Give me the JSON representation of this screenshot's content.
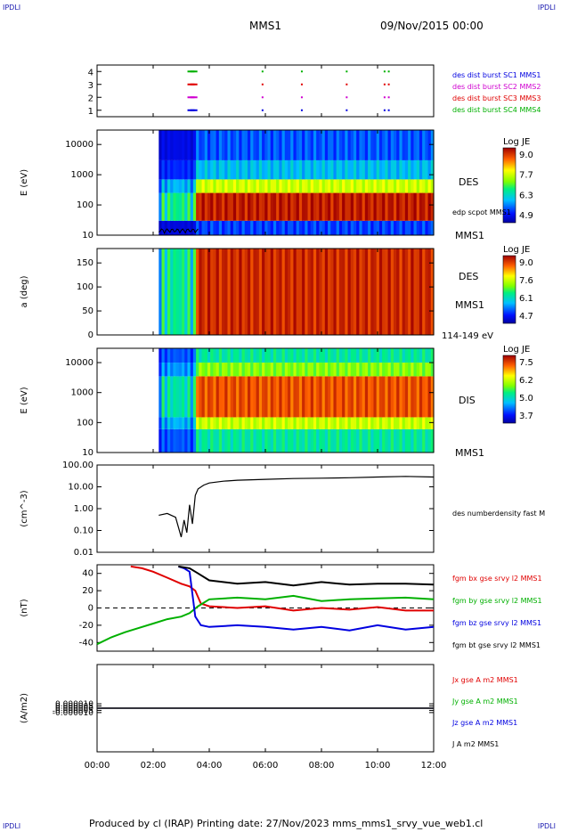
{
  "corner_labels": {
    "top_left": "IPDLI",
    "top_right": "IPDLI",
    "bottom_left": "IPDLI",
    "bottom_right": "IPDLI"
  },
  "header": {
    "spacecraft": "MMS1",
    "datetime": "09/Nov/2015 00:00"
  },
  "footer": "Produced by cl (IRAP)   Printing date: 27/Nov/2023   mms_mms1_srvy_vue_web1.cl",
  "colors": {
    "green": "#00b000",
    "magenta": "#d000d0",
    "red": "#e00000",
    "blue": "#0000e0",
    "black": "#000000"
  },
  "chart_data": [
    {
      "type": "scatter",
      "id": "burst",
      "ylim": [
        0.5,
        4.5
      ],
      "yticks": [
        "1",
        "2",
        "3",
        "4"
      ],
      "series": [
        {
          "name": "des dist burst SC1 MMS1",
          "color": "#0000e0",
          "level": 1,
          "x": [
            3.35,
            3.45,
            5.9,
            7.3,
            8.9,
            10.25,
            10.4
          ]
        },
        {
          "name": "des dist burst SC2 MMS2",
          "color": "#d000d0",
          "level": 2,
          "x": [
            3.35,
            3.45,
            5.9,
            7.3,
            8.9,
            10.25,
            10.4
          ]
        },
        {
          "name": "des dist burst SC3 MMS3",
          "color": "#e00000",
          "level": 3,
          "x": [
            3.35,
            3.45,
            5.9,
            7.3,
            8.9,
            10.25,
            10.4
          ]
        },
        {
          "name": "des dist burst SC4 MMS4",
          "color": "#00b000",
          "level": 4,
          "x": [
            3.35,
            3.45,
            5.9,
            7.3,
            8.9,
            10.25,
            10.4
          ]
        }
      ]
    },
    {
      "type": "heatmap",
      "id": "des_energy",
      "ylabel": "E (eV)",
      "yscale": "log",
      "ylim": [
        10,
        30000
      ],
      "yticks": [
        "10",
        "100",
        "1000",
        "10000"
      ],
      "instrument": "DES",
      "spacecraft": "MMS1",
      "overlay_label": "edp scpot MMS1",
      "colorbar": {
        "title": "Log JE",
        "ticks": [
          "9.0",
          "7.7",
          "6.3",
          "4.9"
        ],
        "min": 4.9,
        "max": 9.1
      },
      "data_start_hour": 2.2,
      "bands": [
        {
          "from": 10,
          "to": 30,
          "level": 5.6
        },
        {
          "from": 30,
          "to": 250,
          "level": 8.9
        },
        {
          "from": 250,
          "to": 700,
          "level": 7.6
        },
        {
          "from": 700,
          "to": 3000,
          "level": 6.2
        },
        {
          "from": 3000,
          "to": 30000,
          "level": 5.7
        }
      ]
    },
    {
      "type": "heatmap",
      "id": "des_pitch",
      "ylabel": "a (deg)",
      "ylim": [
        0,
        180
      ],
      "yticks": [
        "0",
        "50",
        "100",
        "150"
      ],
      "instrument": "DES",
      "spacecraft": "MMS1",
      "energy_range": "114-149 eV",
      "colorbar": {
        "title": "Log JE",
        "ticks": [
          "9.0",
          "7.6",
          "6.1",
          "4.7"
        ],
        "min": 4.7,
        "max": 9.1
      },
      "data_start_hour": 2.2,
      "bands": [
        {
          "from": 0,
          "to": 180,
          "level": 8.8
        }
      ]
    },
    {
      "type": "heatmap",
      "id": "dis_energy",
      "ylabel": "E (eV)",
      "yscale": "log",
      "ylim": [
        10,
        30000
      ],
      "yticks": [
        "10",
        "100",
        "1000",
        "10000"
      ],
      "instrument": "DIS",
      "spacecraft": "MMS1",
      "colorbar": {
        "title": "Log JE",
        "ticks": [
          "7.5",
          "6.2",
          "5.0",
          "3.7"
        ],
        "min": 3.7,
        "max": 7.8
      },
      "data_start_hour": 2.2,
      "bands": [
        {
          "from": 10,
          "to": 60,
          "level": 5.4
        },
        {
          "from": 60,
          "to": 150,
          "level": 6.3
        },
        {
          "from": 150,
          "to": 3500,
          "level": 7.3
        },
        {
          "from": 3500,
          "to": 10000,
          "level": 6.0
        },
        {
          "from": 10000,
          "to": 30000,
          "level": 5.4
        }
      ]
    },
    {
      "type": "line",
      "id": "density",
      "ylabel": "(cm^-3)",
      "yscale": "log",
      "ylim": [
        0.01,
        100
      ],
      "yticks": [
        "0.01",
        "0.10",
        "1.00",
        "10.00",
        "100.00"
      ],
      "series": [
        {
          "name": "des numberdensity fast M",
          "color": "#000000",
          "x": [
            2.2,
            2.5,
            2.8,
            3.0,
            3.1,
            3.2,
            3.3,
            3.4,
            3.5,
            3.6,
            3.8,
            4.0,
            4.5,
            5.0,
            6.0,
            7.0,
            8.0,
            9.0,
            10.0,
            11.0,
            12.0
          ],
          "y": [
            0.5,
            0.6,
            0.4,
            0.05,
            0.3,
            0.08,
            1.5,
            0.2,
            4,
            8,
            12,
            15,
            18,
            20,
            22,
            24,
            25,
            26,
            28,
            30,
            28
          ]
        }
      ]
    },
    {
      "type": "line",
      "id": "bfield",
      "ylabel": "(nT)",
      "ylim": [
        -50,
        50
      ],
      "yticks": [
        "-40",
        "-20",
        "0",
        "20",
        "40"
      ],
      "series": [
        {
          "name": "fgm bx gse srvy l2 MMS1",
          "color": "#e00000",
          "x": [
            1.2,
            1.6,
            2.0,
            2.5,
            3.0,
            3.3,
            3.5,
            3.7,
            4.0,
            5.0,
            6.0,
            7.0,
            8.0,
            9.0,
            10.0,
            11.0,
            12.0
          ],
          "y": [
            48,
            46,
            42,
            35,
            28,
            25,
            20,
            5,
            2,
            0,
            2,
            -3,
            0,
            -2,
            1,
            -3,
            -3
          ]
        },
        {
          "name": "fgm by gse srvy l2 MMS1",
          "color": "#00b000",
          "x": [
            0.0,
            0.5,
            1.0,
            1.5,
            2.0,
            2.5,
            3.0,
            3.3,
            3.6,
            4.0,
            5.0,
            6.0,
            7.0,
            8.0,
            9.0,
            10.0,
            11.0,
            12.0
          ],
          "y": [
            -42,
            -34,
            -28,
            -23,
            -18,
            -13,
            -10,
            -6,
            2,
            10,
            12,
            10,
            14,
            8,
            10,
            11,
            12,
            10
          ]
        },
        {
          "name": "fgm bz gse srvy l2 MMS1",
          "color": "#0000e0",
          "x": [
            2.9,
            3.1,
            3.3,
            3.5,
            3.7,
            4.0,
            5.0,
            6.0,
            7.0,
            8.0,
            9.0,
            10.0,
            11.0,
            12.0
          ],
          "y": [
            48,
            46,
            42,
            -10,
            -20,
            -22,
            -20,
            -22,
            -25,
            -22,
            -26,
            -20,
            -25,
            -22
          ]
        },
        {
          "name": "fgm bt gse srvy l2 MMS1",
          "color": "#000000",
          "x": [
            2.9,
            3.3,
            3.6,
            4.0,
            5.0,
            6.0,
            7.0,
            8.0,
            9.0,
            10.0,
            11.0,
            12.0
          ],
          "y": [
            48,
            46,
            40,
            32,
            28,
            30,
            26,
            30,
            27,
            28,
            28,
            27
          ]
        }
      ]
    },
    {
      "type": "line",
      "id": "current",
      "ylabel": "(A/m2)",
      "ylim": [
        -0.0001,
        0.0001
      ],
      "yticks": [
        "-0.000010",
        "-0.000005",
        "0.000000",
        "0.000005",
        "0.000010"
      ],
      "series": [
        {
          "name": "Jx gse A m2 MMS1",
          "color": "#e00000",
          "x": [
            0,
            12
          ],
          "y": [
            0,
            0
          ]
        },
        {
          "name": "Jy gse A m2 MMS1",
          "color": "#00b000",
          "x": [
            0,
            12
          ],
          "y": [
            0,
            0
          ]
        },
        {
          "name": "Jz gse A m2 MMS1",
          "color": "#0000e0",
          "x": [
            0,
            12
          ],
          "y": [
            0,
            0
          ]
        },
        {
          "name": "J A m2 MMS1",
          "color": "#000000",
          "x": [
            0,
            12
          ],
          "y": [
            0,
            0
          ]
        }
      ]
    }
  ],
  "time_axis": {
    "range": [
      0,
      12
    ],
    "ticks": [
      "00:00",
      "02:00",
      "04:00",
      "06:00",
      "08:00",
      "10:00",
      "12:00"
    ]
  }
}
